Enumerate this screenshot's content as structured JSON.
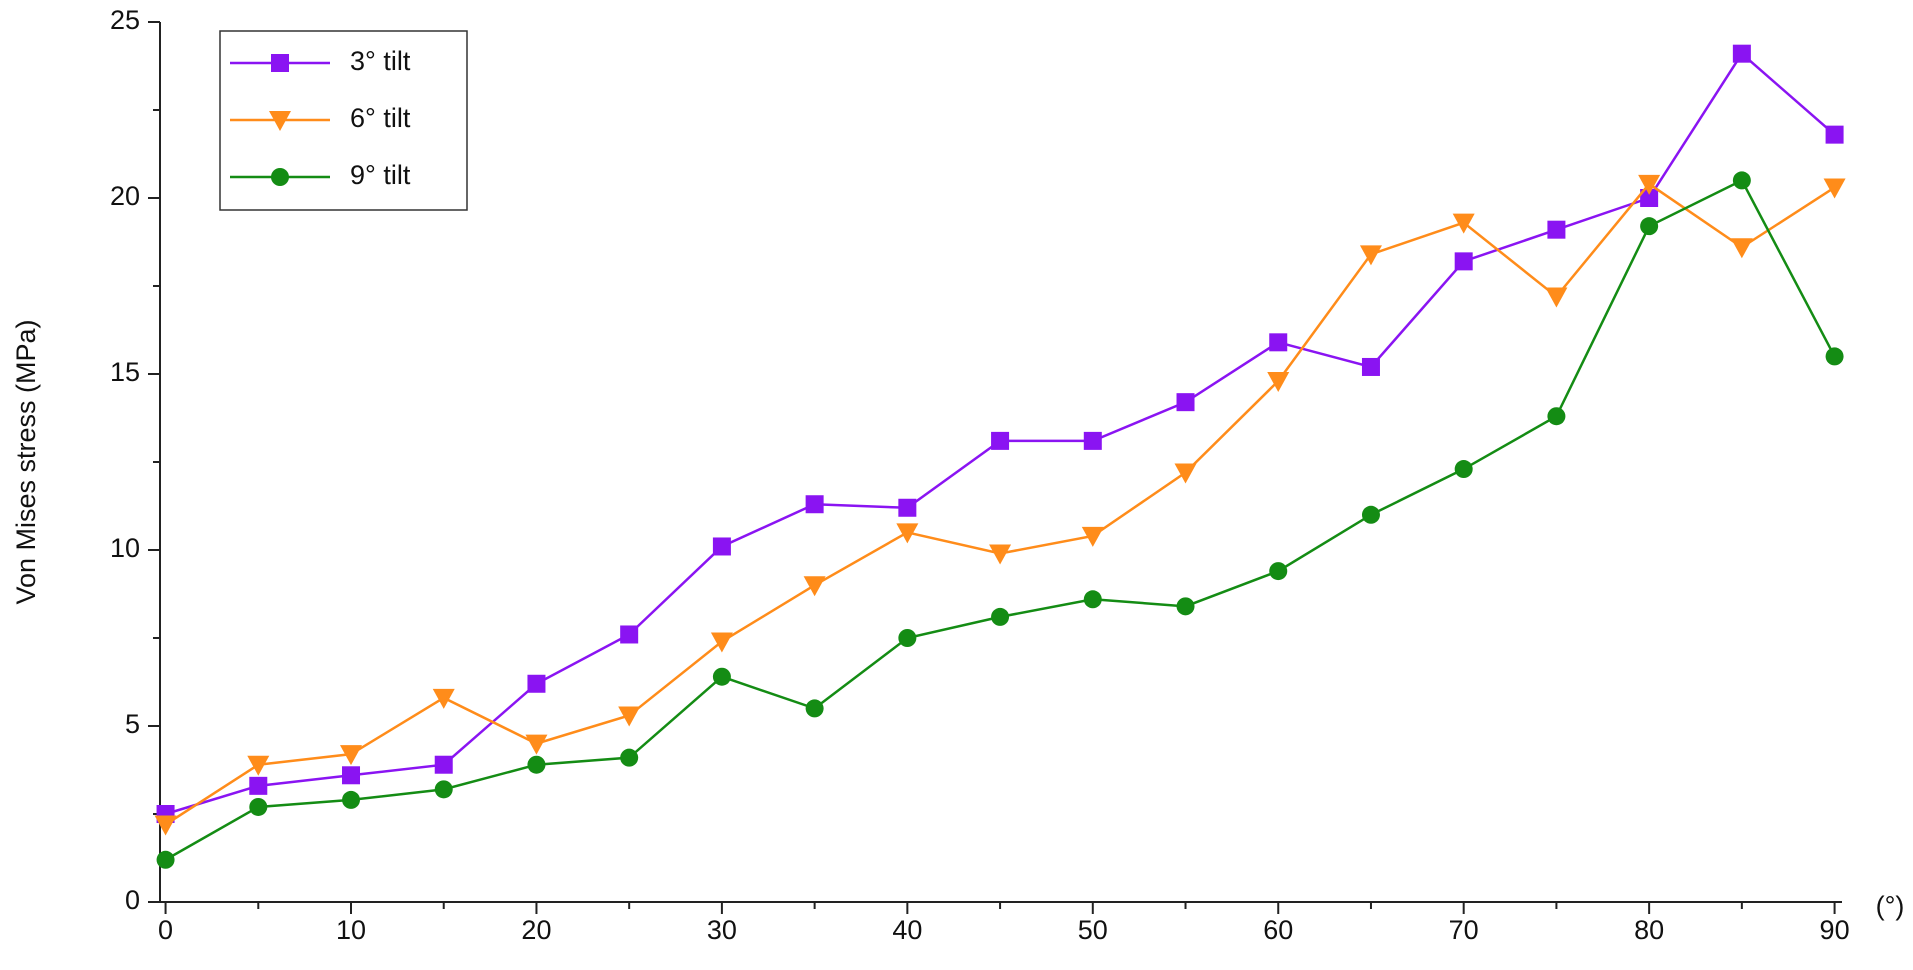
{
  "chart_data": {
    "type": "line",
    "ylabel": "Von Mises stress (MPa)",
    "xlabel": "(°)",
    "x": [
      0,
      5,
      10,
      15,
      20,
      25,
      30,
      35,
      40,
      45,
      50,
      55,
      60,
      65,
      70,
      75,
      80,
      85,
      90
    ],
    "xlim": [
      -0.3,
      90.4
    ],
    "ylim": [
      0,
      25
    ],
    "xticks": [
      0,
      10,
      20,
      30,
      40,
      50,
      60,
      70,
      80,
      90
    ],
    "xminorticks": [
      5,
      15,
      25,
      35,
      45,
      55,
      65,
      75,
      85
    ],
    "yticks": [
      0,
      5,
      10,
      15,
      20,
      25
    ],
    "yminorticks": [
      2.5,
      7.5,
      12.5,
      17.5,
      22.5
    ],
    "grid": false,
    "legend": "upper left",
    "series": [
      {
        "name": "3° tilt",
        "color": "#8a14f2",
        "marker": "square",
        "values": [
          2.5,
          3.3,
          3.6,
          3.9,
          6.2,
          7.6,
          10.1,
          11.3,
          11.2,
          13.1,
          13.1,
          14.2,
          15.9,
          15.2,
          18.2,
          19.1,
          20.0,
          24.1,
          21.8
        ]
      },
      {
        "name": "6° tilt",
        "color": "#ff8c1a",
        "marker": "triangle-down",
        "values": [
          2.2,
          3.9,
          4.2,
          5.8,
          4.5,
          5.3,
          7.4,
          9.0,
          10.5,
          9.9,
          10.4,
          12.2,
          14.8,
          18.4,
          19.3,
          17.2,
          20.4,
          18.6,
          20.3
        ]
      },
      {
        "name": "9° tilt",
        "color": "#148c14",
        "marker": "circle",
        "values": [
          1.2,
          2.7,
          2.9,
          3.2,
          3.9,
          4.1,
          6.4,
          5.5,
          7.5,
          8.1,
          8.6,
          8.4,
          9.4,
          11.0,
          12.3,
          13.8,
          19.2,
          20.5,
          15.5
        ]
      }
    ]
  }
}
